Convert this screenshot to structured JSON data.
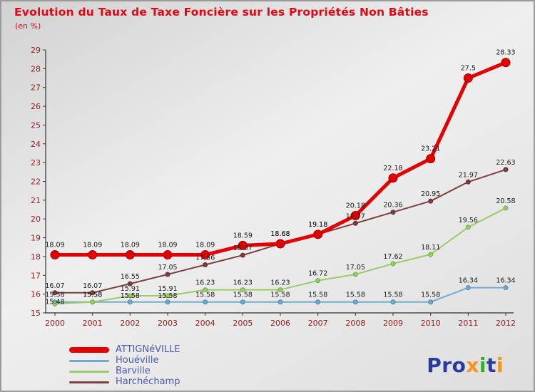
{
  "title": "Evolution du Taux de Taxe Foncière sur les Propriétés Non Bâties",
  "subtitle": "(en %)",
  "colors": {
    "title": "#e30613",
    "axis_text": "#9b1a1a",
    "label_text": "#1a1a1a",
    "legend_text": "#4a5ab5",
    "axis_line": "#333333"
  },
  "chart_data": {
    "type": "line",
    "title": "Evolution du Taux de Taxe Foncière sur les Propriétés Non Bâties",
    "subtitle": "(en %)",
    "x": [
      2000,
      2001,
      2002,
      2003,
      2004,
      2005,
      2006,
      2007,
      2008,
      2009,
      2010,
      2011,
      2012
    ],
    "ylim": [
      15,
      29
    ],
    "ytick_step": 1,
    "grid": false,
    "legend_position": "bottom-left",
    "series": [
      {
        "name": "ATTIGNéVILLE",
        "color": "#e30000",
        "marker_stroke": "#a00000",
        "line_width": 5,
        "marker_radius": 6,
        "values": [
          18.09,
          18.09,
          18.09,
          18.09,
          18.09,
          18.59,
          18.68,
          19.18,
          20.18,
          22.18,
          23.21,
          27.5,
          28.33
        ]
      },
      {
        "name": "Houéville",
        "color": "#74a9cf",
        "marker_stroke": "#4f86ad",
        "line_width": 2,
        "marker_radius": 3,
        "values": [
          15.58,
          15.58,
          15.58,
          15.58,
          15.58,
          15.58,
          15.58,
          15.58,
          15.58,
          15.58,
          15.58,
          16.34,
          16.34
        ]
      },
      {
        "name": "Barville",
        "color": "#99cc66",
        "marker_stroke": "#6faa3c",
        "line_width": 2,
        "marker_radius": 3,
        "values": [
          15.48,
          15.58,
          15.91,
          15.91,
          16.23,
          16.23,
          16.23,
          16.72,
          17.05,
          17.62,
          18.11,
          19.56,
          20.58
        ]
      },
      {
        "name": "Harchéchamp",
        "color": "#7d4040",
        "marker_stroke": "#5a2d2d",
        "line_width": 2,
        "marker_radius": 3,
        "values": [
          16.07,
          16.07,
          16.55,
          17.05,
          17.56,
          18.07,
          18.68,
          19.18,
          19.77,
          20.36,
          20.95,
          21.97,
          22.63
        ]
      }
    ]
  },
  "logo": {
    "text": "Proxiti",
    "letters": [
      {
        "ch": "P",
        "color": "#2a3b9f"
      },
      {
        "ch": "r",
        "color": "#2a3b9f"
      },
      {
        "ch": "o",
        "color": "#2a3b9f"
      },
      {
        "ch": "x",
        "color": "#f7941d"
      },
      {
        "ch": "i",
        "color": "#3aaa35"
      },
      {
        "ch": "t",
        "color": "#2a3b9f"
      },
      {
        "ch": "i",
        "color": "#f7941d"
      }
    ]
  }
}
